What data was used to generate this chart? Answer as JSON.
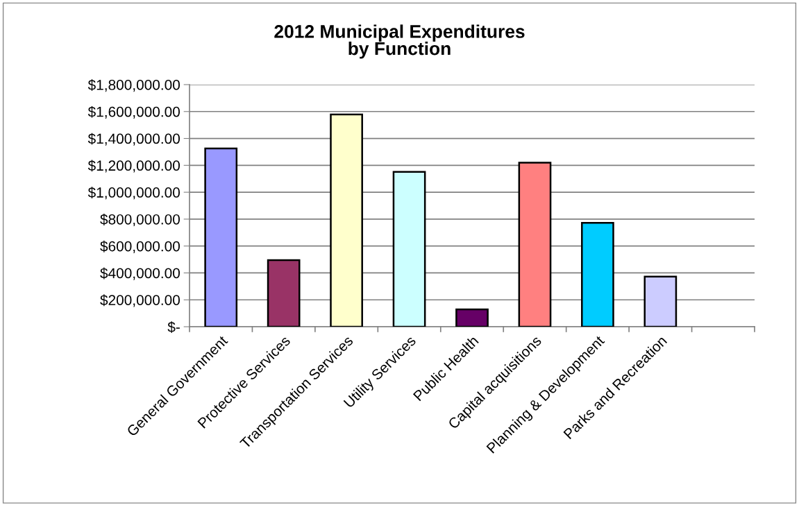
{
  "chart_data": {
    "type": "bar",
    "title": "2012 Municipal Expenditures\nby Function",
    "categories": [
      "General Government",
      "Protective Services",
      "Transportation Services",
      "Utility Services",
      "Public Health",
      "Capital acquisitions",
      "Planning & Development",
      "Parks and Recreation",
      null
    ],
    "values": [
      1325000,
      495000,
      1578000,
      1152000,
      129000,
      1220000,
      772000,
      373000,
      null
    ],
    "colors": [
      "#9999ff",
      "#993366",
      "#ffffcc",
      "#ccffff",
      "#660066",
      "#ff8080",
      "#00ccff",
      "#ccccff",
      null
    ],
    "ylim": [
      0,
      1800000
    ],
    "yticks": [
      {
        "value": 0,
        "label": "$-"
      },
      {
        "value": 200000,
        "label": "$200,000.00"
      },
      {
        "value": 400000,
        "label": "$400,000.00"
      },
      {
        "value": 600000,
        "label": "$600,000.00"
      },
      {
        "value": 800000,
        "label": "$800,000.00"
      },
      {
        "value": 1000000,
        "label": "$1,000,000.00"
      },
      {
        "value": 1200000,
        "label": "$1,200,000.00"
      },
      {
        "value": 1400000,
        "label": "$1,400,000.00"
      },
      {
        "value": 1600000,
        "label": "$1,600,000.00"
      },
      {
        "value": 1800000,
        "label": "$1,800,000.00"
      }
    ],
    "grid": "y"
  }
}
